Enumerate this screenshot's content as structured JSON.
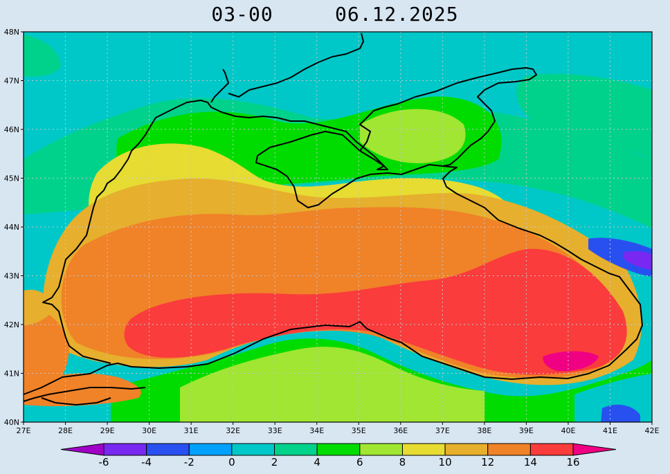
{
  "title": {
    "time": "03-00",
    "date": "06.12.2025"
  },
  "map": {
    "lat_labels": [
      "48N",
      "47N",
      "46N",
      "45N",
      "44N",
      "43N",
      "42N",
      "41N",
      "40N"
    ],
    "lon_labels": [
      "27E",
      "28E",
      "29E",
      "30E",
      "31E",
      "32E",
      "33E",
      "34E",
      "35E",
      "36E",
      "37E",
      "38E",
      "39E",
      "40E",
      "41E",
      "42E"
    ],
    "colors": {
      "background": "#d8e6f2",
      "land_outline": "#000000",
      "grid": "#c8c8c8"
    }
  },
  "colorbar": {
    "labels": [
      "-6",
      "-4",
      "-2",
      "0",
      "2",
      "4",
      "6",
      "8",
      "10",
      "12",
      "14",
      "16"
    ],
    "bins": [
      "#a000c8",
      "#7828f0",
      "#2850f0",
      "#00a0ff",
      "#00c8c8",
      "#00d28c",
      "#00dc00",
      "#a0e632",
      "#e6dc32",
      "#e6af2d",
      "#f08228",
      "#fa3c3c",
      "#f00082"
    ]
  }
}
